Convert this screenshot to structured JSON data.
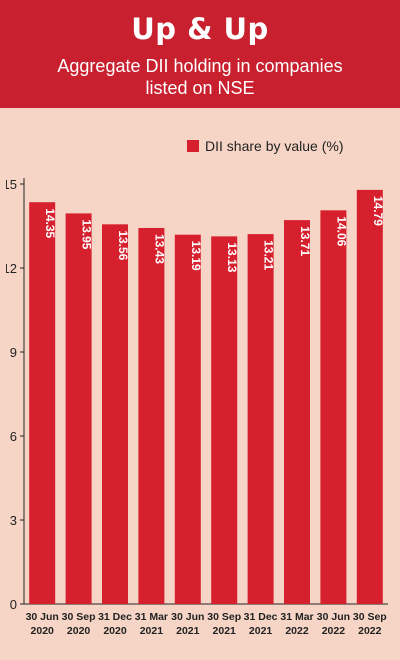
{
  "header": {
    "title": "Up & Up",
    "subtitle_line1": "Aggregate DII holding in companies",
    "subtitle_line2": "listed on NSE"
  },
  "colors": {
    "header_bg": "#c8202f",
    "bar": "#d7202e",
    "background": "#f6d5c6"
  },
  "chart_data": {
    "type": "bar",
    "title": "Up & Up",
    "subtitle": "Aggregate DII holding in companies listed on NSE",
    "categories": [
      [
        "30 Jun",
        "2020"
      ],
      [
        "30 Sep",
        "2020"
      ],
      [
        "31 Dec",
        "2020"
      ],
      [
        "31 Mar",
        "2021"
      ],
      [
        "30 Jun",
        "2021"
      ],
      [
        "30 Sep",
        "2021"
      ],
      [
        "31 Dec",
        "2021"
      ],
      [
        "31 Mar",
        "2022"
      ],
      [
        "30 Jun",
        "2022"
      ],
      [
        "30 Sep",
        "2022"
      ]
    ],
    "series": [
      {
        "name": "DII share by value (%)",
        "values": [
          14.35,
          13.95,
          13.56,
          13.43,
          13.19,
          13.13,
          13.21,
          13.71,
          14.06,
          14.79
        ]
      }
    ],
    "ylim": [
      0,
      15
    ],
    "yticks": [
      0,
      3,
      6,
      9,
      12,
      15
    ],
    "grid": false,
    "legend_position": "top-right"
  }
}
